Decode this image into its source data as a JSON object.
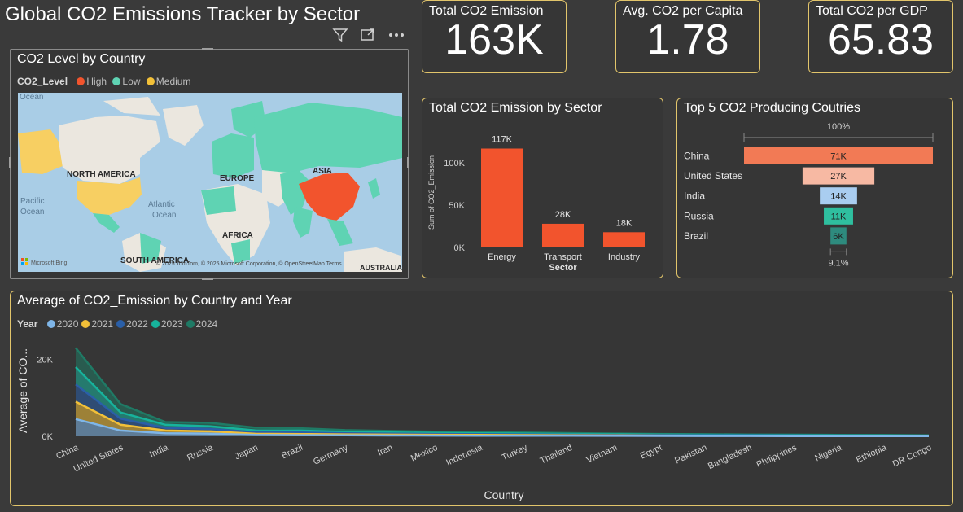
{
  "header": {
    "title": "Global CO2 Emissions Tracker by Sector"
  },
  "kpis": [
    {
      "label": "Total CO2 Emission",
      "value": "163K"
    },
    {
      "label": "Avg. CO2 per Capita",
      "value": "1.78"
    },
    {
      "label": "Total CO2 per GDP",
      "value": "65.83"
    }
  ],
  "map": {
    "title": "CO2 Level by Country",
    "legend_title": "CO2_Level",
    "legend": [
      {
        "name": "High",
        "color": "#f2542d"
      },
      {
        "name": "Low",
        "color": "#5fd3b3"
      },
      {
        "name": "Medium",
        "color": "#f2c038"
      }
    ],
    "labels": {
      "ocean_top": "Ocean",
      "north_america": "NORTH AMERICA",
      "europe": "EUROPE",
      "asia": "ASIA",
      "africa": "AFRICA",
      "south_america": "SOUTH AMERICA",
      "australia": "AUSTRALIA",
      "pacific": "Pacific",
      "pacific_ocean": "Ocean",
      "atlantic": "Atlantic",
      "atlantic_ocean": "Ocean",
      "bing": "Microsoft Bing",
      "attribution": "© 2025 TomTom, © 2025 Microsoft Corporation, © OpenStreetMap  Terms"
    }
  },
  "sector_chart": {
    "title": "Total CO2 Emission by Sector",
    "chart_data": {
      "type": "bar",
      "categories": [
        "Energy",
        "Transport",
        "Industry"
      ],
      "values": [
        117000,
        28000,
        18000
      ],
      "data_labels": [
        "117K",
        "28K",
        "18K"
      ],
      "xlabel": "Sector",
      "ylabel": "Sum of CO2_Emission",
      "ylim": [
        0,
        130000
      ],
      "ticks": [
        {
          "value": 0,
          "label": "0K"
        },
        {
          "value": 50000,
          "label": "50K"
        },
        {
          "value": 100000,
          "label": "100K"
        }
      ],
      "color": "#f2542d"
    }
  },
  "funnel": {
    "title": "Top 5 CO2 Producing Coutries",
    "top_label": "100%",
    "bottom_label": "9.1%",
    "chart_data": {
      "type": "bar",
      "categories": [
        "China",
        "United States",
        "India",
        "Russia",
        "Brazil"
      ],
      "values": [
        71000,
        27000,
        14000,
        11000,
        6000
      ],
      "data_labels": [
        "71K",
        "27K",
        "14K",
        "11K",
        "6K"
      ],
      "colors": [
        "#f27a55",
        "#f7b9a3",
        "#a9cdf0",
        "#2fbf9f",
        "#2e8b7e"
      ]
    }
  },
  "area_chart": {
    "title": "Average of CO2_Emission by Country and Year",
    "chart_data": {
      "type": "area",
      "legend_title": "Year",
      "categories": [
        "China",
        "United States",
        "India",
        "Russia",
        "Japan",
        "Brazil",
        "Germany",
        "Iran",
        "Mexico",
        "Indonesia",
        "Turkey",
        "Thailand",
        "Vietnam",
        "Egypt",
        "Pakistan",
        "Bangladesh",
        "Philippines",
        "Nigeria",
        "Ethiopia",
        "DR Congo"
      ],
      "series": [
        {
          "name": "2020",
          "color": "#7fb6e8",
          "values": [
            4500,
            1500,
            800,
            700,
            350,
            300,
            250,
            220,
            200,
            180,
            160,
            140,
            120,
            100,
            90,
            80,
            70,
            60,
            50,
            40
          ]
        },
        {
          "name": "2021",
          "color": "#f2c038",
          "values": [
            4500,
            1500,
            700,
            600,
            300,
            300,
            250,
            220,
            200,
            180,
            160,
            140,
            120,
            100,
            90,
            80,
            70,
            60,
            50,
            40
          ]
        },
        {
          "name": "2022",
          "color": "#2a5fa8",
          "values": [
            4500,
            1600,
            700,
            600,
            400,
            400,
            300,
            250,
            220,
            200,
            180,
            150,
            130,
            110,
            100,
            90,
            80,
            70,
            60,
            50
          ]
        },
        {
          "name": "2023",
          "color": "#17b39c",
          "values": [
            4500,
            1600,
            800,
            700,
            500,
            500,
            350,
            300,
            260,
            230,
            210,
            180,
            160,
            140,
            120,
            110,
            100,
            90,
            80,
            70
          ]
        },
        {
          "name": "2024",
          "color": "#1f7a65",
          "values": [
            5000,
            2200,
            700,
            900,
            700,
            600,
            450,
            400,
            350,
            300,
            270,
            230,
            200,
            170,
            150,
            130,
            120,
            110,
            100,
            80
          ]
        }
      ],
      "xlabel": "Country",
      "ylabel": "Average of CO...",
      "ylim": [
        0,
        25000
      ],
      "ticks": [
        {
          "value": 0,
          "label": "0K"
        },
        {
          "value": 20000,
          "label": "20K"
        }
      ]
    }
  }
}
